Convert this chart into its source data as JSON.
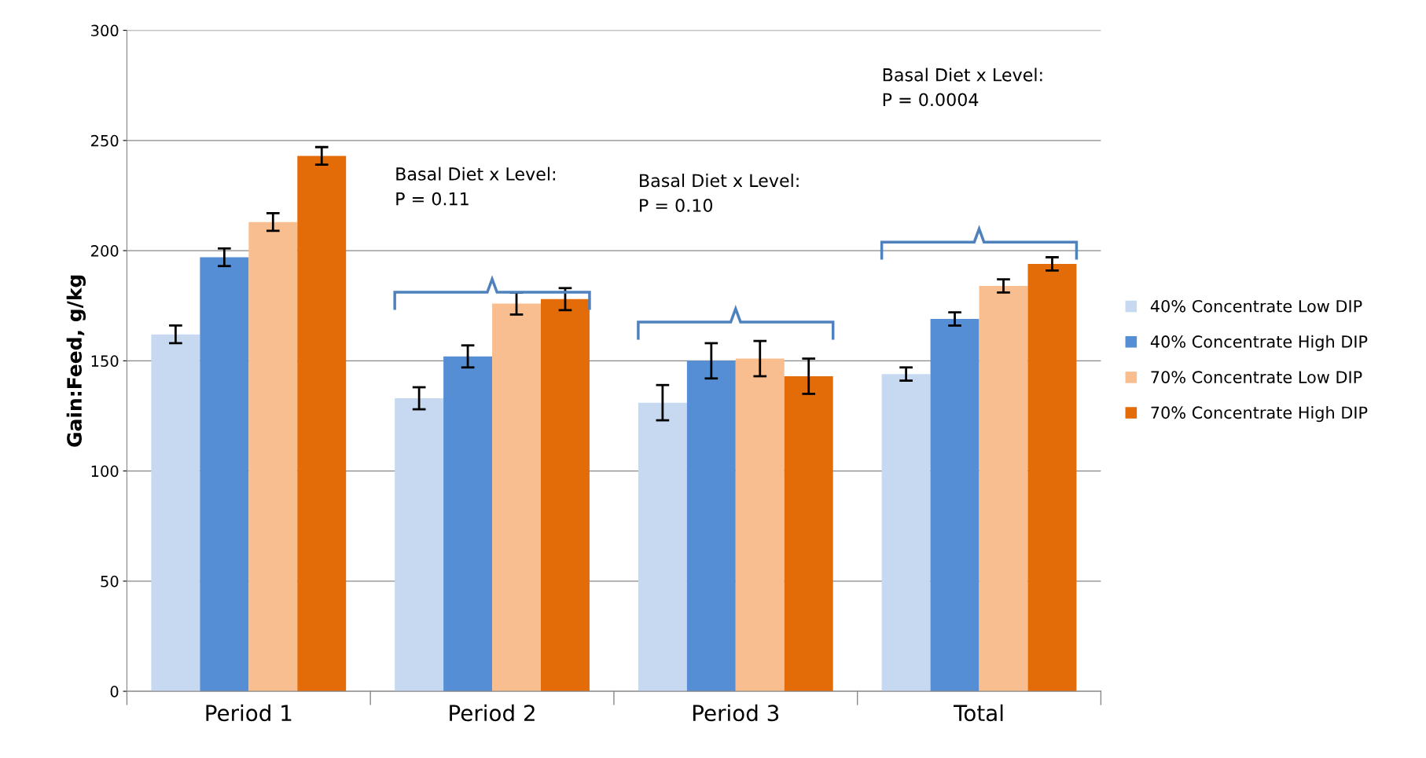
{
  "chart_data": {
    "type": "bar",
    "ylabel": "Gain:Feed, g/kg",
    "categories": [
      "Period 1",
      "Period 2",
      "Period 3",
      "Total"
    ],
    "series": [
      {
        "name": "40% Concentrate Low DIP",
        "color": "#c6d9f1",
        "values": [
          162,
          133,
          131,
          144
        ],
        "errors": [
          4,
          5,
          8,
          3
        ]
      },
      {
        "name": "40% Concentrate High DIP",
        "color": "#558ed5",
        "values": [
          197,
          152,
          150,
          169
        ],
        "errors": [
          4,
          5,
          8,
          3
        ]
      },
      {
        "name": "70% Concentrate Low DIP",
        "color": "#f9be8f",
        "values": [
          213,
          176,
          151,
          184
        ],
        "errors": [
          4,
          5,
          8,
          3
        ]
      },
      {
        "name": "70% Concentrate High DIP",
        "color": "#e36c09",
        "values": [
          243,
          178,
          143,
          194
        ],
        "errors": [
          4,
          5,
          8,
          3
        ]
      }
    ],
    "ylim": [
      0,
      300
    ],
    "yticks": [
      0,
      50,
      100,
      150,
      200,
      250,
      300
    ],
    "grid": "y",
    "legend": "right",
    "annotations": [
      "Basal Diet x Level:\nP = 0.11",
      "Basal Diet x Level:\nP = 0.10",
      "Basal Diet x Level:\nP = 0.0004"
    ]
  }
}
